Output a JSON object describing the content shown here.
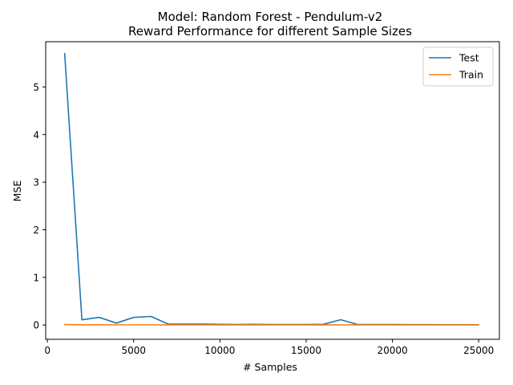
{
  "chart_data": {
    "type": "line",
    "title": "Model: Random Forest - Pendulum-v2",
    "subtitle": "Reward Performance for different Sample Sizes",
    "xlabel": "# Samples",
    "ylabel": "MSE",
    "xlim": [
      -100,
      26200
    ],
    "ylim": [
      -0.3,
      5.95
    ],
    "xticks": [
      0,
      5000,
      10000,
      15000,
      20000,
      25000
    ],
    "yticks": [
      0,
      1,
      2,
      3,
      4,
      5
    ],
    "grid": false,
    "legend_position": "top-right",
    "x": [
      1000,
      2000,
      3000,
      4000,
      5000,
      6000,
      7000,
      8000,
      9000,
      10000,
      11000,
      12000,
      13000,
      14000,
      15000,
      16000,
      17000,
      18000,
      19000,
      20000,
      21000,
      22000,
      23000,
      24000,
      25000
    ],
    "series": [
      {
        "name": "Test",
        "color": "#1f77b4",
        "values": [
          5.7,
          0.11,
          0.16,
          0.04,
          0.16,
          0.18,
          0.02,
          0.02,
          0.02,
          0.015,
          0.01,
          0.015,
          0.01,
          0.01,
          0.01,
          0.015,
          0.11,
          0.01,
          0.01,
          0.01,
          0.008,
          0.008,
          0.007,
          0.006,
          0.005
        ]
      },
      {
        "name": "Train",
        "color": "#ff7f0e",
        "values": [
          0.01,
          0.005,
          0.004,
          0.003,
          0.003,
          0.003,
          0.002,
          0.002,
          0.002,
          0.002,
          0.002,
          0.002,
          0.002,
          0.002,
          0.002,
          0.002,
          0.002,
          0.002,
          0.002,
          0.002,
          0.002,
          0.002,
          0.002,
          0.002,
          0.002
        ]
      }
    ]
  }
}
